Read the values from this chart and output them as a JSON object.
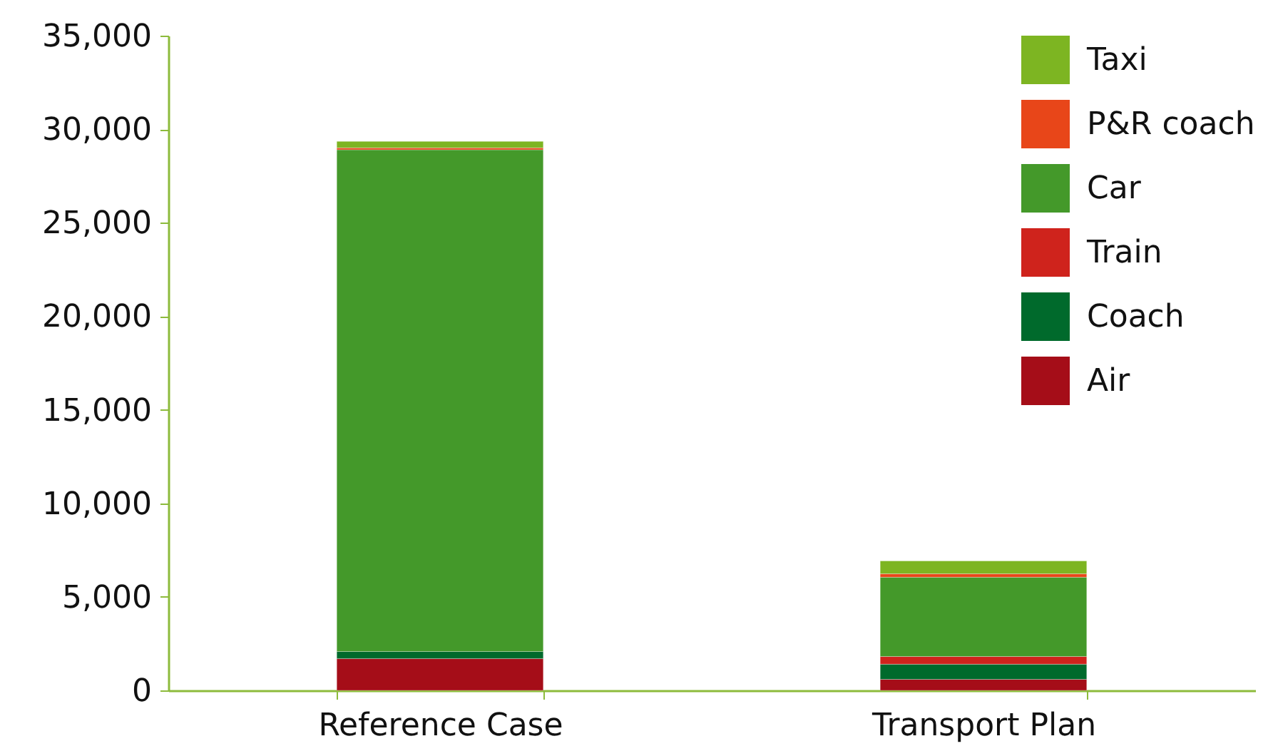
{
  "chart_data": {
    "type": "bar",
    "stacked": true,
    "categories": [
      "Reference Case",
      "Transport Plan"
    ],
    "series": [
      {
        "name": "Air",
        "color": "#a50d18",
        "values": [
          1700,
          590
        ]
      },
      {
        "name": "Coach",
        "color": "#006a2c",
        "values": [
          380,
          810
        ]
      },
      {
        "name": "Train",
        "color": "#cf231c",
        "values": [
          null,
          410
        ]
      },
      {
        "name": "Car",
        "color": "#44992a",
        "values": [
          26820,
          4240
        ]
      },
      {
        "name": "P&R coach",
        "color": "#e84619",
        "values": [
          100,
          180
        ]
      },
      {
        "name": "Taxi",
        "color": "#7db522",
        "values": [
          350,
          690
        ]
      }
    ],
    "ylim": [
      0,
      35000
    ],
    "yticks": [
      {
        "value": 0,
        "label": "0"
      },
      {
        "value": 5000,
        "label": "5,000"
      },
      {
        "value": 10000,
        "label": "10,000"
      },
      {
        "value": 15000,
        "label": "15,000"
      },
      {
        "value": 20000,
        "label": "20,000"
      },
      {
        "value": 25000,
        "label": "25,000"
      },
      {
        "value": 30000,
        "label": "30,000"
      },
      {
        "value": 35000,
        "label": "35,000"
      }
    ],
    "grid": false,
    "legend": "top right"
  }
}
